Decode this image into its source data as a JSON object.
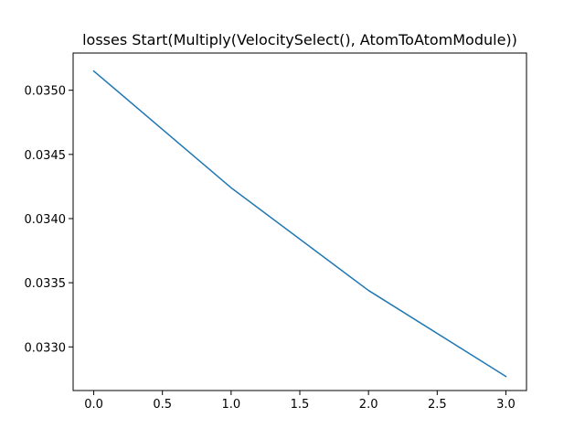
{
  "chart_data": {
    "type": "line",
    "title": "losses Start(Multiply(VelocitySelect(), AtomToAtomModule))",
    "xlabel": "",
    "ylabel": "",
    "xlim": [
      -0.15,
      3.15
    ],
    "ylim": [
      0.03266,
      0.03529
    ],
    "grid": false,
    "xticks": [
      0.0,
      0.5,
      1.0,
      1.5,
      2.0,
      2.5,
      3.0
    ],
    "xtick_labels": [
      "0.0",
      "0.5",
      "1.0",
      "1.5",
      "2.0",
      "2.5",
      "3.0"
    ],
    "yticks": [
      0.033,
      0.0335,
      0.034,
      0.0345,
      0.035
    ],
    "ytick_labels": [
      "0.0330",
      "0.0335",
      "0.0340",
      "0.0345",
      "0.0350"
    ],
    "series": [
      {
        "color": "#1f77b4",
        "x": [
          0,
          1,
          2,
          3
        ],
        "y": [
          0.03515,
          0.03424,
          0.03344,
          0.03277
        ]
      }
    ]
  }
}
